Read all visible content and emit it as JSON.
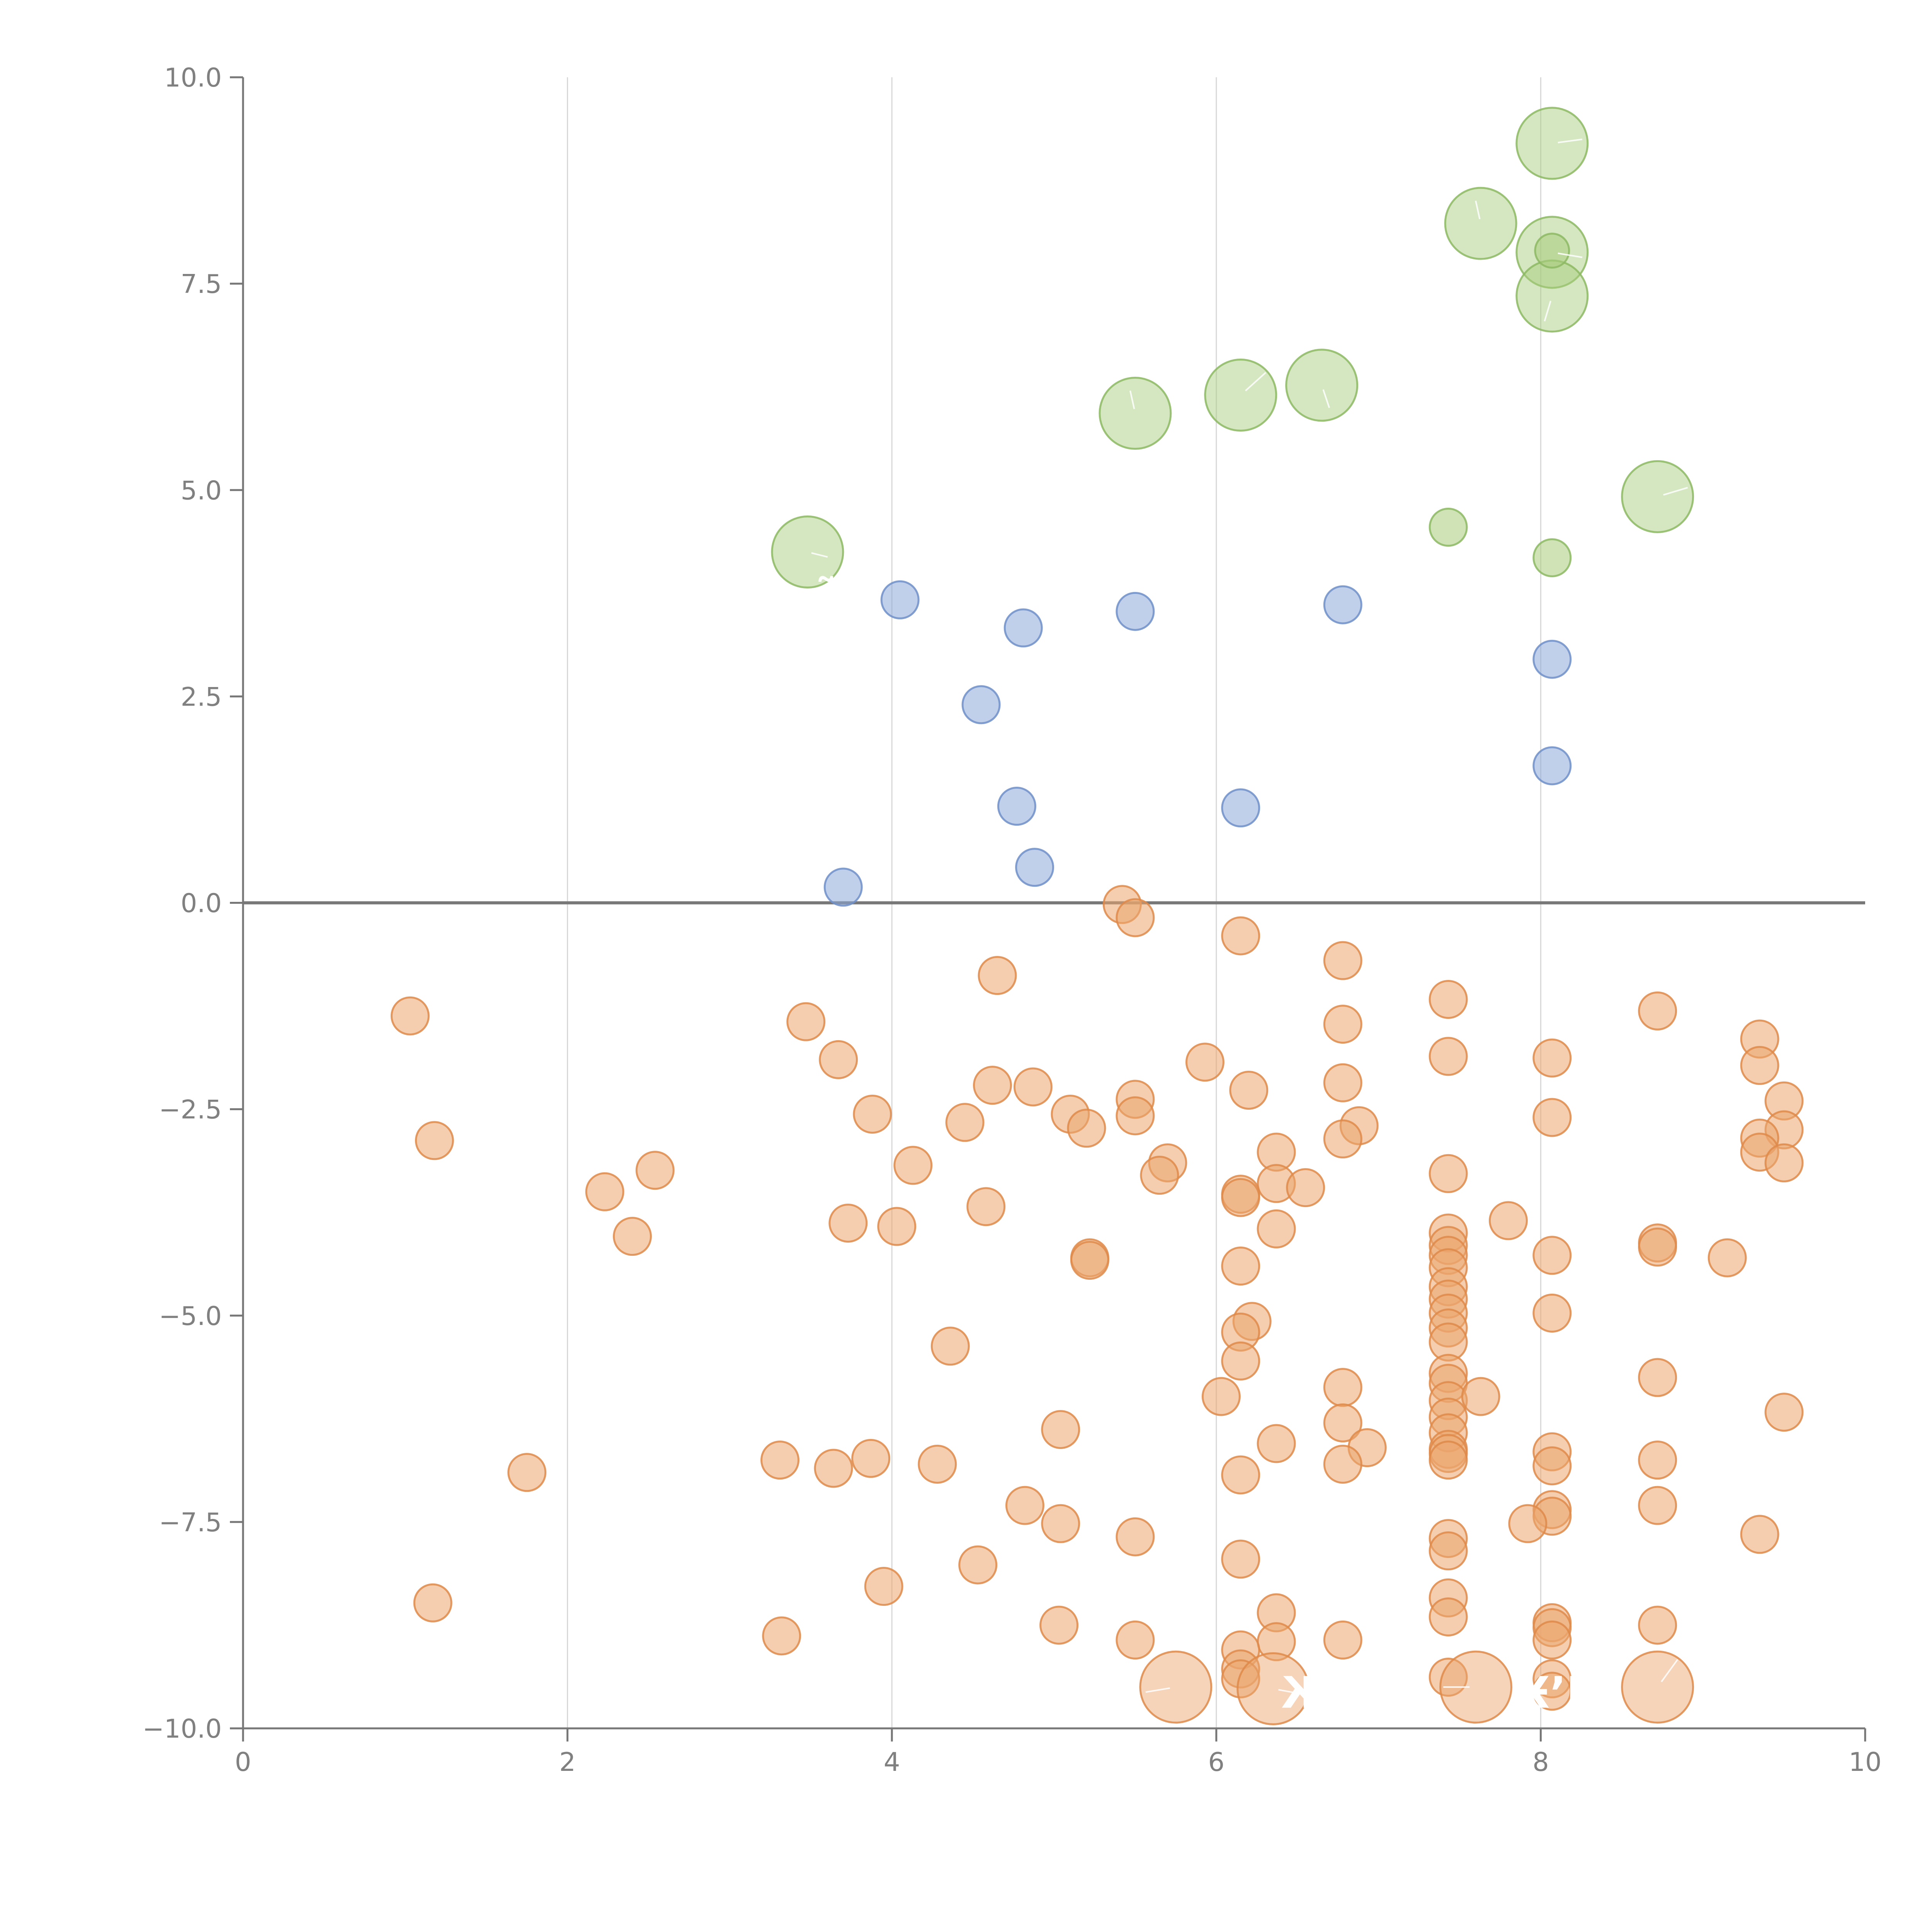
{
  "chart_data": {
    "type": "scatter",
    "title": "",
    "xlabel": "",
    "ylabel": "",
    "xlim": [
      0,
      10
    ],
    "ylim": [
      -10,
      10
    ],
    "grid": "vertical",
    "x_ticks": [
      0,
      2,
      4,
      6,
      8,
      10
    ],
    "y_ticks": [
      -10,
      -7.5,
      -5,
      -2.5,
      0,
      2.5,
      5,
      7.5,
      10
    ],
    "x_tick_labels": [
      "0",
      "2",
      "4",
      "6",
      "8",
      "10"
    ],
    "y_tick_labels": [
      "−10.0",
      "−7.5",
      "−5.0",
      "−2.5",
      "0.0",
      "2.5",
      "5.0",
      "7.5",
      "10.0"
    ],
    "zero_line": 0,
    "series": [
      {
        "name": "green",
        "color": "#a8cc7c",
        "stroke": "#8cb863",
        "points": [
          [
            3.48,
            4.25,
            2
          ],
          [
            5.5,
            5.93,
            2
          ],
          [
            6.15,
            6.15,
            2
          ],
          [
            6.65,
            6.27,
            2
          ],
          [
            7.63,
            8.23,
            2
          ],
          [
            8.07,
            9.2,
            2
          ],
          [
            8.07,
            7.88,
            2
          ],
          [
            8.07,
            7.35,
            2
          ],
          [
            8.72,
            4.92,
            2
          ],
          [
            7.43,
            4.55,
            1
          ],
          [
            8.07,
            4.18,
            1
          ],
          [
            8.07,
            7.9,
            0.55
          ]
        ]
      },
      {
        "name": "blue",
        "color": "#8eaad8",
        "stroke": "#6e8fc8",
        "points": [
          [
            4.05,
            3.67,
            1
          ],
          [
            4.81,
            3.33,
            1
          ],
          [
            5.5,
            3.53,
            1
          ],
          [
            6.78,
            3.61,
            1
          ],
          [
            8.07,
            2.95,
            1
          ],
          [
            4.55,
            2.4,
            1
          ],
          [
            4.77,
            1.17,
            1
          ],
          [
            6.15,
            1.15,
            1
          ],
          [
            8.07,
            1.66,
            1
          ],
          [
            4.88,
            0.43,
            1
          ],
          [
            3.7,
            0.19,
            1
          ]
        ]
      },
      {
        "name": "orange",
        "color": "#eba56d",
        "stroke": "#de8a4a",
        "points": [
          [
            5.42,
            -0.02,
            1
          ],
          [
            5.5,
            -0.18,
            1
          ],
          [
            6.15,
            -0.4,
            1
          ],
          [
            6.78,
            -0.7,
            1
          ],
          [
            4.65,
            -0.88,
            1
          ],
          [
            7.43,
            -1.17,
            1
          ],
          [
            8.72,
            -1.31,
            1
          ],
          [
            1.03,
            -1.37,
            1
          ],
          [
            3.47,
            -1.44,
            1
          ],
          [
            6.78,
            -1.47,
            1
          ],
          [
            9.35,
            -1.65,
            1
          ],
          [
            7.43,
            -1.86,
            1
          ],
          [
            8.07,
            -1.88,
            1
          ],
          [
            3.67,
            -1.9,
            1
          ],
          [
            5.93,
            -1.93,
            1
          ],
          [
            9.35,
            -1.97,
            1
          ],
          [
            6.78,
            -2.18,
            1
          ],
          [
            4.62,
            -2.21,
            1
          ],
          [
            4.87,
            -2.23,
            1
          ],
          [
            6.2,
            -2.27,
            1
          ],
          [
            5.5,
            -2.38,
            1
          ],
          [
            9.5,
            -2.4,
            1
          ],
          [
            3.88,
            -2.56,
            1
          ],
          [
            5.1,
            -2.56,
            1
          ],
          [
            5.5,
            -2.58,
            1
          ],
          [
            8.07,
            -2.6,
            1
          ],
          [
            4.45,
            -2.66,
            1
          ],
          [
            6.88,
            -2.7,
            1
          ],
          [
            5.2,
            -2.73,
            1
          ],
          [
            9.5,
            -2.75,
            1
          ],
          [
            9.35,
            -2.85,
            1
          ],
          [
            6.78,
            -2.86,
            1
          ],
          [
            1.18,
            -2.88,
            1
          ],
          [
            9.35,
            -3.02,
            1
          ],
          [
            6.37,
            -3.02,
            1
          ],
          [
            5.7,
            -3.15,
            1
          ],
          [
            9.5,
            -3.15,
            1
          ],
          [
            4.13,
            -3.18,
            1
          ],
          [
            2.54,
            -3.24,
            1
          ],
          [
            7.43,
            -3.28,
            1
          ],
          [
            5.65,
            -3.3,
            1
          ],
          [
            6.37,
            -3.4,
            1
          ],
          [
            6.55,
            -3.45,
            1
          ],
          [
            2.23,
            -3.5,
            1
          ],
          [
            6.15,
            -3.53,
            1
          ],
          [
            6.15,
            -3.57,
            1
          ],
          [
            4.58,
            -3.68,
            1
          ],
          [
            7.8,
            -3.85,
            1
          ],
          [
            3.73,
            -3.88,
            1
          ],
          [
            4.03,
            -3.92,
            1
          ],
          [
            6.37,
            -3.95,
            1
          ],
          [
            7.43,
            -4.0,
            1
          ],
          [
            2.4,
            -4.04,
            1
          ],
          [
            7.43,
            -4.15,
            1
          ],
          [
            8.72,
            -4.12,
            1
          ],
          [
            8.72,
            -4.17,
            1
          ],
          [
            7.43,
            -4.27,
            1
          ],
          [
            8.07,
            -4.27,
            1
          ],
          [
            5.22,
            -4.3,
            1
          ],
          [
            5.22,
            -4.33,
            1
          ],
          [
            9.15,
            -4.3,
            1
          ],
          [
            7.43,
            -4.42,
            1
          ],
          [
            6.15,
            -4.4,
            1
          ],
          [
            7.43,
            -4.65,
            1
          ],
          [
            7.43,
            -4.8,
            1
          ],
          [
            7.43,
            -4.97,
            1
          ],
          [
            8.07,
            -4.97,
            1
          ],
          [
            6.22,
            -5.07,
            1
          ],
          [
            7.43,
            -5.15,
            1
          ],
          [
            6.15,
            -5.2,
            1
          ],
          [
            7.43,
            -5.32,
            1
          ],
          [
            4.36,
            -5.37,
            1
          ],
          [
            6.15,
            -5.55,
            1
          ],
          [
            7.43,
            -5.7,
            1
          ],
          [
            8.72,
            -5.75,
            1
          ],
          [
            7.43,
            -5.82,
            1
          ],
          [
            6.78,
            -5.87,
            1
          ],
          [
            6.03,
            -5.98,
            1
          ],
          [
            7.43,
            -6.03,
            1
          ],
          [
            7.63,
            -5.98,
            1
          ],
          [
            9.5,
            -6.17,
            1
          ],
          [
            7.43,
            -6.23,
            1
          ],
          [
            6.78,
            -6.3,
            1
          ],
          [
            5.04,
            -6.38,
            1
          ],
          [
            7.43,
            -6.42,
            1
          ],
          [
            6.37,
            -6.55,
            1
          ],
          [
            6.93,
            -6.6,
            1
          ],
          [
            7.43,
            -6.62,
            1
          ],
          [
            7.43,
            -6.67,
            1
          ],
          [
            8.07,
            -6.65,
            1
          ],
          [
            7.43,
            -6.75,
            1
          ],
          [
            3.87,
            -6.73,
            1
          ],
          [
            3.31,
            -6.75,
            1
          ],
          [
            8.72,
            -6.75,
            1
          ],
          [
            4.28,
            -6.8,
            1
          ],
          [
            8.07,
            -6.82,
            1
          ],
          [
            6.78,
            -6.8,
            1
          ],
          [
            3.64,
            -6.85,
            1
          ],
          [
            1.75,
            -6.9,
            1
          ],
          [
            6.15,
            -6.93,
            1
          ],
          [
            4.82,
            -7.3,
            1
          ],
          [
            8.72,
            -7.3,
            1
          ],
          [
            8.07,
            -7.35,
            1
          ],
          [
            8.07,
            -7.43,
            1
          ],
          [
            5.04,
            -7.52,
            1
          ],
          [
            7.92,
            -7.52,
            1
          ],
          [
            9.35,
            -7.65,
            1
          ],
          [
            5.5,
            -7.68,
            1
          ],
          [
            7.43,
            -7.7,
            1
          ],
          [
            7.43,
            -7.85,
            1
          ],
          [
            6.15,
            -7.95,
            1
          ],
          [
            4.53,
            -8.02,
            1
          ],
          [
            3.95,
            -8.28,
            1
          ],
          [
            7.43,
            -8.42,
            1
          ],
          [
            1.17,
            -8.48,
            1
          ],
          [
            6.37,
            -8.6,
            1
          ],
          [
            7.43,
            -8.65,
            1
          ],
          [
            8.07,
            -8.72,
            1
          ],
          [
            8.72,
            -8.75,
            1
          ],
          [
            8.07,
            -8.78,
            1
          ],
          [
            5.03,
            -8.75,
            1
          ],
          [
            3.32,
            -8.88,
            1
          ],
          [
            5.5,
            -8.93,
            1
          ],
          [
            6.78,
            -8.93,
            1
          ],
          [
            8.07,
            -8.93,
            1
          ],
          [
            6.37,
            -8.95,
            1
          ],
          [
            6.15,
            -9.05,
            1
          ],
          [
            6.15,
            -9.28,
            1
          ],
          [
            6.15,
            -9.4,
            1
          ],
          [
            7.43,
            -9.38,
            1
          ],
          [
            8.07,
            -9.4,
            1
          ],
          [
            8.07,
            -9.55,
            1
          ],
          [
            5.75,
            -9.5,
            2
          ],
          [
            6.35,
            -9.52,
            2
          ],
          [
            7.6,
            -9.5,
            2
          ],
          [
            8.72,
            -9.5,
            2
          ]
        ]
      }
    ],
    "callouts": [
      {
        "text": "‐̃И",
        "x": 3.55,
        "y": 3.55,
        "anchor": [
          3.48,
          4.25
        ]
      },
      {
        "text": "ЖЪ",
        "x": 6.4,
        "y": -9.75,
        "anchor": [
          6.35,
          -9.52
        ]
      },
      {
        "text": "Ӿ’ИЈ",
        "x": 7.85,
        "y": -9.75,
        "anchor": [
          8.72,
          -9.5
        ]
      }
    ]
  }
}
